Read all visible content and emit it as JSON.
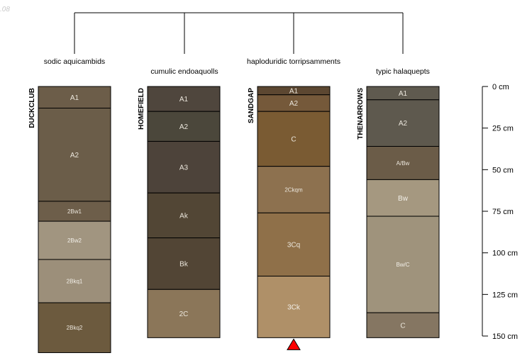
{
  "corner_label": ".08",
  "depth_unit": "cm",
  "depth_axis": {
    "min": 0,
    "max": 150,
    "ticks": [
      {
        "value": 0,
        "label": "0 cm"
      },
      {
        "value": 25,
        "label": "25 cm"
      },
      {
        "value": 50,
        "label": "50 cm"
      },
      {
        "value": 75,
        "label": "75 cm"
      },
      {
        "value": 100,
        "label": "100 cm"
      },
      {
        "value": 125,
        "label": "125 cm"
      },
      {
        "value": 150,
        "label": "150 cm"
      }
    ]
  },
  "profiles": [
    {
      "id": "duckclub",
      "name": "DUCKCLUB",
      "taxon": "sodic aquicambids",
      "horizons": [
        {
          "name": "A1",
          "top": 0,
          "bottom": 13,
          "color": "#6c5d49"
        },
        {
          "name": "A2",
          "top": 13,
          "bottom": 69,
          "color": "#6b5d49"
        },
        {
          "name": "2Bw1",
          "top": 69,
          "bottom": 81,
          "color": "#6d5e4a"
        },
        {
          "name": "2Bw2",
          "top": 81,
          "bottom": 104,
          "color": "#a19580"
        },
        {
          "name": "2Bkq1",
          "top": 104,
          "bottom": 130,
          "color": "#9c8f7a"
        },
        {
          "name": "2Bkq2",
          "top": 130,
          "bottom": 160,
          "color": "#6c5a3e"
        }
      ]
    },
    {
      "id": "homefield",
      "name": "HOMEFIELD",
      "taxon": "cumulic endoaquolls",
      "horizons": [
        {
          "name": "A1",
          "top": 0,
          "bottom": 15,
          "color": "#4f463d"
        },
        {
          "name": "A2",
          "top": 15,
          "bottom": 33,
          "color": "#4b473b"
        },
        {
          "name": "A3",
          "top": 33,
          "bottom": 64,
          "color": "#4d433a"
        },
        {
          "name": "Ak",
          "top": 64,
          "bottom": 91,
          "color": "#524635"
        },
        {
          "name": "Bk",
          "top": 91,
          "bottom": 122,
          "color": "#524535"
        },
        {
          "name": "2C",
          "top": 122,
          "bottom": 151,
          "color": "#8b7659"
        }
      ]
    },
    {
      "id": "sandgap",
      "name": "SANDGAP",
      "taxon": "haploduridic torripsamments",
      "marker": "triangle",
      "horizons": [
        {
          "name": "A1",
          "top": 0,
          "bottom": 5,
          "color": "#5c4731"
        },
        {
          "name": "A2",
          "top": 5,
          "bottom": 15,
          "color": "#75593a"
        },
        {
          "name": "C",
          "top": 15,
          "bottom": 48,
          "color": "#7a5b33"
        },
        {
          "name": "2Ckqm",
          "top": 48,
          "bottom": 76,
          "color": "#8d714f"
        },
        {
          "name": "3Cq",
          "top": 76,
          "bottom": 114,
          "color": "#8f7049"
        },
        {
          "name": "3Ck",
          "top": 114,
          "bottom": 151,
          "color": "#af9068"
        }
      ]
    },
    {
      "id": "thenarrows",
      "name": "THENARROWS",
      "taxon": "typic halaquepts",
      "horizons": [
        {
          "name": "A1",
          "top": 0,
          "bottom": 8,
          "color": "#5f5a4f"
        },
        {
          "name": "A2",
          "top": 8,
          "bottom": 36,
          "color": "#5e594e"
        },
        {
          "name": "A/Bw",
          "top": 36,
          "bottom": 56,
          "color": "#6b5c48"
        },
        {
          "name": "Bw",
          "top": 56,
          "bottom": 78,
          "color": "#a59880"
        },
        {
          "name": "Bw/C",
          "top": 78,
          "bottom": 136,
          "color": "#9f937c"
        },
        {
          "name": "C",
          "top": 136,
          "bottom": 151,
          "color": "#857662"
        }
      ]
    }
  ]
}
